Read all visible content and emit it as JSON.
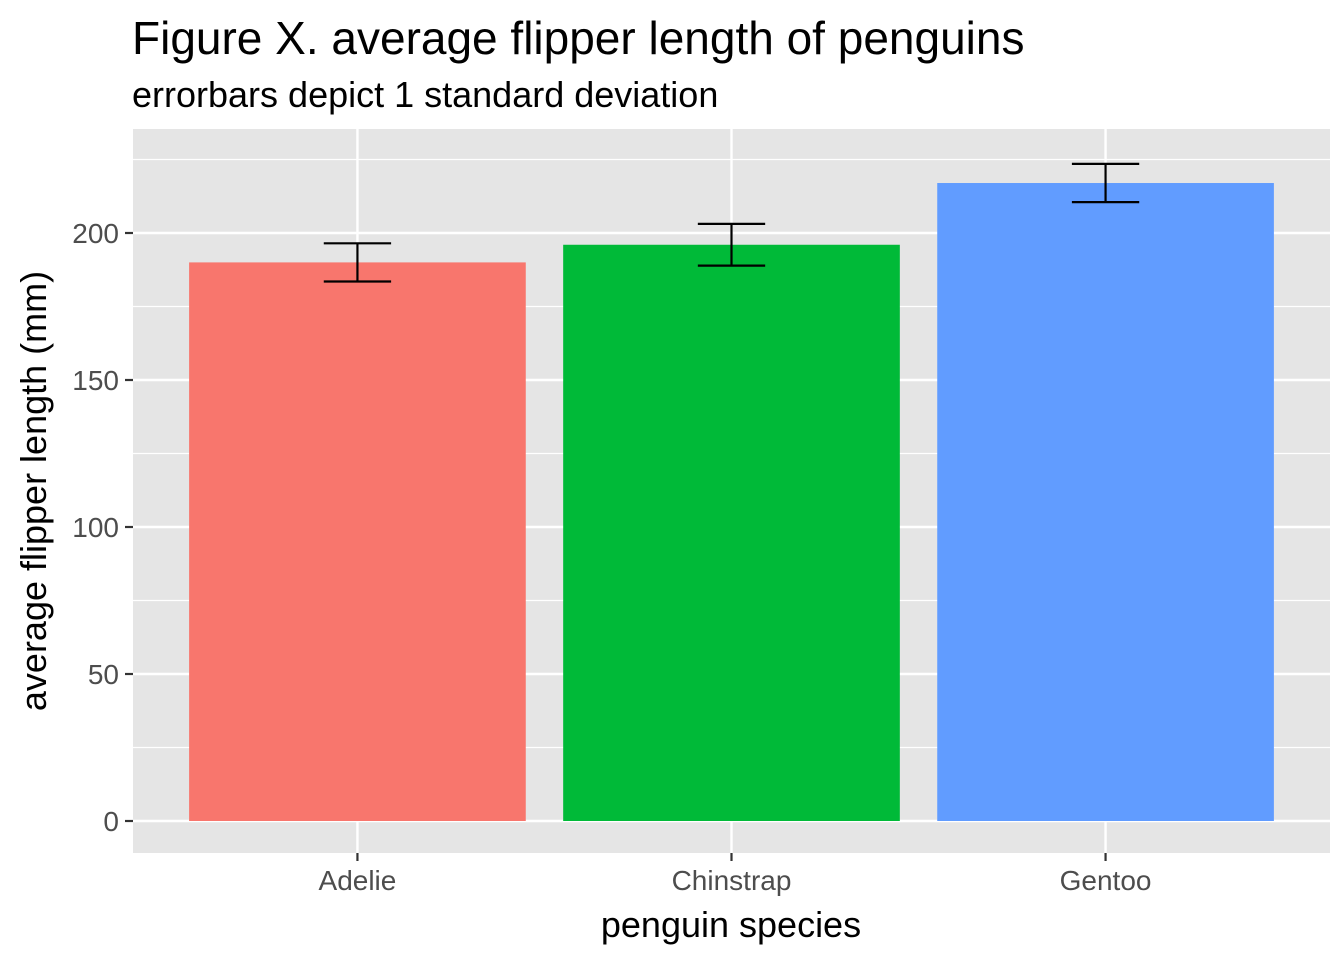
{
  "chart_data": {
    "type": "bar",
    "title": "Figure X. average flipper length of penguins",
    "subtitle": "errorbars depict 1 standard deviation",
    "xlabel": "penguin species",
    "ylabel": "average flipper length (mm)",
    "categories": [
      "Adelie",
      "Chinstrap",
      "Gentoo"
    ],
    "values": [
      190,
      196,
      217
    ],
    "error_sd": [
      6.5,
      7.1,
      6.5
    ],
    "colors": [
      "#F8766D",
      "#00BA38",
      "#619CFF"
    ],
    "ylim": [
      -10,
      235
    ],
    "yticks": [
      0,
      50,
      100,
      150,
      200
    ],
    "ytick_labels": [
      "0",
      "50",
      "100",
      "150",
      "200"
    ],
    "grid": true,
    "legend": "none",
    "panel_background": "#E5E5E5",
    "grid_color": "#FFFFFF"
  }
}
